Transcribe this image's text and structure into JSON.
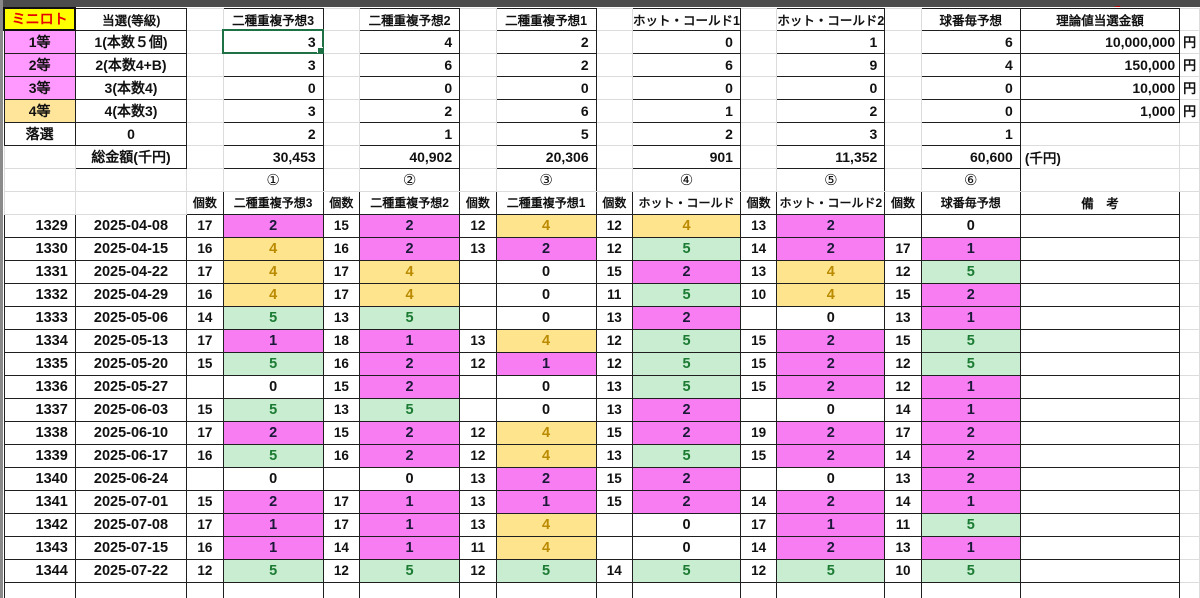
{
  "sheet": {
    "corner_label": "ミニロト",
    "grade_column_header": "当選(等級)",
    "kosu_header": "個数",
    "yen_label": "円",
    "sen_yen_label": "(千円)",
    "remarks_header": "備　考",
    "colors": {
      "corner_bg": "#FFFF00",
      "corner_text": "#E60000",
      "tier_pink": "#FF99FF",
      "tier_orange": "#FFE599",
      "value_pink": "#F97DF2",
      "value_yellow": "#FFE48E",
      "value_yellow_text": "#BA8A00",
      "value_green": "#C8EDD0",
      "value_green_text": "#1B7B33",
      "selection_green": "#1E7145",
      "top_strip": "#4c4c4c",
      "red_mark": "#C00000"
    },
    "top_table": {
      "method_headers": [
        "二種重複予想3",
        "二種重複予想2",
        "二種重複予想1",
        "ホット・コールド1",
        "ホット・コールド2",
        "球番毎予想"
      ],
      "prize_column_header": "理論値当選金額",
      "rows": [
        {
          "tier": "1等",
          "tier_color": "pink",
          "grade": "1(本数５個)",
          "counts": [
            "3",
            "4",
            "2",
            "0",
            "1",
            "6"
          ],
          "prize": "10,000,000"
        },
        {
          "tier": "2等",
          "tier_color": "pink",
          "grade": "2(本数4+B)",
          "counts": [
            "3",
            "6",
            "2",
            "6",
            "9",
            "4"
          ],
          "prize": "150,000"
        },
        {
          "tier": "3等",
          "tier_color": "pink",
          "grade": "3(本数4)",
          "counts": [
            "0",
            "0",
            "0",
            "0",
            "0",
            "0"
          ],
          "prize": "10,000"
        },
        {
          "tier": "4等",
          "tier_color": "orange",
          "grade": "4(本数3)",
          "counts": [
            "3",
            "2",
            "6",
            "1",
            "2",
            "0"
          ],
          "prize": "1,000"
        },
        {
          "tier": "落選",
          "tier_color": "white",
          "grade": "0",
          "counts": [
            "2",
            "1",
            "5",
            "2",
            "3",
            "1"
          ],
          "prize": ""
        }
      ],
      "total_label": "総金額(千円)",
      "totals": [
        "30,453",
        "40,902",
        "20,306",
        "901",
        "11,352",
        "60,600"
      ]
    },
    "data_table": {
      "circled_numbers": [
        "①",
        "②",
        "③",
        "④",
        "⑤",
        "⑥"
      ],
      "method_headers": [
        "二種重複予想3",
        "二種重複予想2",
        "二種重複予想1",
        "ホット・コールド",
        "ホット・コールド2",
        "球番毎予想"
      ],
      "rows": [
        {
          "no": "1329",
          "date": "2025-04-08",
          "pairs": [
            [
              "17",
              "2"
            ],
            [
              "15",
              "2"
            ],
            [
              "12",
              "4"
            ],
            [
              "12",
              "4"
            ],
            [
              "13",
              "2"
            ],
            [
              "",
              "0"
            ]
          ]
        },
        {
          "no": "1330",
          "date": "2025-04-15",
          "pairs": [
            [
              "16",
              "4"
            ],
            [
              "16",
              "2"
            ],
            [
              "13",
              "2"
            ],
            [
              "12",
              "5"
            ],
            [
              "14",
              "2"
            ],
            [
              "17",
              "1"
            ]
          ]
        },
        {
          "no": "1331",
          "date": "2025-04-22",
          "pairs": [
            [
              "17",
              "4"
            ],
            [
              "17",
              "4"
            ],
            [
              "",
              "0"
            ],
            [
              "15",
              "2"
            ],
            [
              "13",
              "4"
            ],
            [
              "12",
              "5"
            ]
          ]
        },
        {
          "no": "1332",
          "date": "2025-04-29",
          "pairs": [
            [
              "16",
              "4"
            ],
            [
              "17",
              "4"
            ],
            [
              "",
              "0"
            ],
            [
              "11",
              "5"
            ],
            [
              "10",
              "4"
            ],
            [
              "15",
              "2"
            ]
          ]
        },
        {
          "no": "1333",
          "date": "2025-05-06",
          "pairs": [
            [
              "14",
              "5"
            ],
            [
              "13",
              "5"
            ],
            [
              "",
              "0"
            ],
            [
              "13",
              "2"
            ],
            [
              "",
              "0"
            ],
            [
              "13",
              "1"
            ]
          ]
        },
        {
          "no": "1334",
          "date": "2025-05-13",
          "pairs": [
            [
              "17",
              "1"
            ],
            [
              "18",
              "1"
            ],
            [
              "13",
              "4"
            ],
            [
              "12",
              "5"
            ],
            [
              "15",
              "2"
            ],
            [
              "15",
              "5"
            ]
          ]
        },
        {
          "no": "1335",
          "date": "2025-05-20",
          "pairs": [
            [
              "15",
              "5"
            ],
            [
              "16",
              "2"
            ],
            [
              "12",
              "1"
            ],
            [
              "12",
              "5"
            ],
            [
              "15",
              "2"
            ],
            [
              "12",
              "5"
            ]
          ]
        },
        {
          "no": "1336",
          "date": "2025-05-27",
          "pairs": [
            [
              "",
              "0"
            ],
            [
              "15",
              "2"
            ],
            [
              "",
              "0"
            ],
            [
              "13",
              "5"
            ],
            [
              "15",
              "2"
            ],
            [
              "12",
              "1"
            ]
          ]
        },
        {
          "no": "1337",
          "date": "2025-06-03",
          "pairs": [
            [
              "15",
              "5"
            ],
            [
              "13",
              "5"
            ],
            [
              "",
              "0"
            ],
            [
              "13",
              "2"
            ],
            [
              "",
              "0"
            ],
            [
              "14",
              "1"
            ]
          ]
        },
        {
          "no": "1338",
          "date": "2025-06-10",
          "pairs": [
            [
              "17",
              "2"
            ],
            [
              "15",
              "2"
            ],
            [
              "12",
              "4"
            ],
            [
              "15",
              "2"
            ],
            [
              "19",
              "2"
            ],
            [
              "17",
              "2"
            ]
          ]
        },
        {
          "no": "1339",
          "date": "2025-06-17",
          "pairs": [
            [
              "16",
              "5"
            ],
            [
              "16",
              "2"
            ],
            [
              "12",
              "4"
            ],
            [
              "13",
              "5"
            ],
            [
              "15",
              "2"
            ],
            [
              "14",
              "2"
            ]
          ]
        },
        {
          "no": "1340",
          "date": "2025-06-24",
          "pairs": [
            [
              "",
              "0"
            ],
            [
              "",
              "0"
            ],
            [
              "13",
              "2"
            ],
            [
              "15",
              "2"
            ],
            [
              "",
              "0"
            ],
            [
              "13",
              "2"
            ]
          ]
        },
        {
          "no": "1341",
          "date": "2025-07-01",
          "pairs": [
            [
              "15",
              "2"
            ],
            [
              "17",
              "1"
            ],
            [
              "13",
              "1"
            ],
            [
              "15",
              "2"
            ],
            [
              "14",
              "2"
            ],
            [
              "14",
              "1"
            ]
          ]
        },
        {
          "no": "1342",
          "date": "2025-07-08",
          "pairs": [
            [
              "17",
              "1"
            ],
            [
              "17",
              "1"
            ],
            [
              "13",
              "4"
            ],
            [
              "",
              "0"
            ],
            [
              "17",
              "1"
            ],
            [
              "11",
              "5"
            ]
          ]
        },
        {
          "no": "1343",
          "date": "2025-07-15",
          "pairs": [
            [
              "16",
              "1"
            ],
            [
              "14",
              "1"
            ],
            [
              "11",
              "4"
            ],
            [
              "",
              "0"
            ],
            [
              "14",
              "2"
            ],
            [
              "13",
              "1"
            ]
          ]
        },
        {
          "no": "1344",
          "date": "2025-07-22",
          "pairs": [
            [
              "12",
              "5"
            ],
            [
              "12",
              "5"
            ],
            [
              "12",
              "5"
            ],
            [
              "14",
              "5"
            ],
            [
              "12",
              "5"
            ],
            [
              "10",
              "5"
            ]
          ]
        }
      ]
    }
  }
}
